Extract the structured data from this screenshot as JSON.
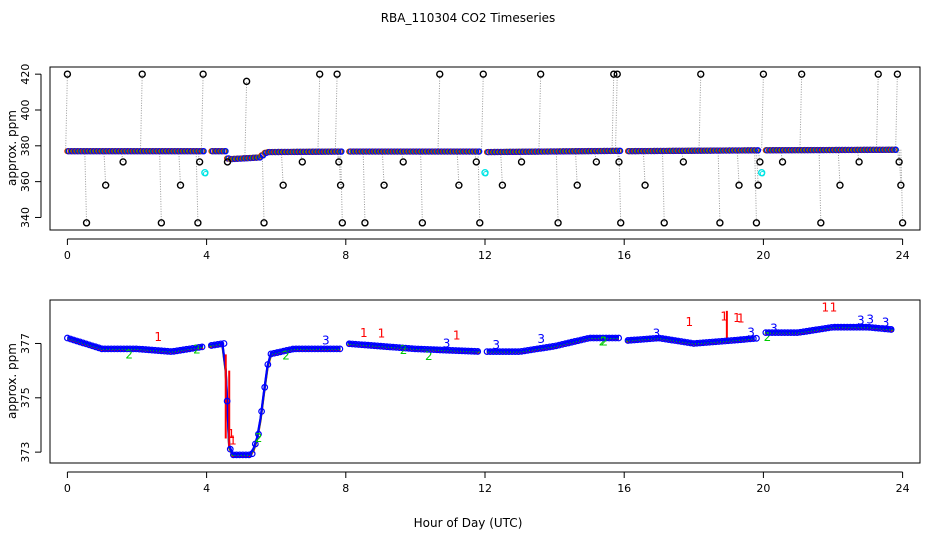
{
  "chart_data": {
    "type": "scatter",
    "title": "RBA_110304  CO2 Timeseries",
    "xlabel": "Hour of Day (UTC)",
    "colors": {
      "raw": "#000000",
      "sampleA": "#0000ff",
      "sampleB": "#00cc00",
      "sampleC": "#ff0000",
      "standard": "#00e5e5",
      "connector": "#999999"
    },
    "panels": [
      {
        "name": "raw",
        "ylabel": "approx. ppm",
        "xlim": [
          -0.5,
          24.5
        ],
        "ylim": [
          333,
          424
        ],
        "xticks": [
          0,
          4,
          8,
          12,
          16,
          20,
          24
        ],
        "xtick_labels": [
          "0",
          "4",
          "8",
          "12",
          "16",
          "20",
          "24"
        ],
        "yticks": [
          340,
          360,
          380,
          400,
          420
        ],
        "ytick_labels": [
          "340",
          "360",
          "380",
          "400",
          "420"
        ],
        "baseline": [
          [
            0.0,
            377.0
          ],
          [
            4.5,
            377.0
          ],
          [
            4.6,
            372.5
          ],
          [
            5.5,
            373.5
          ],
          [
            5.7,
            376.5
          ],
          [
            7.9,
            376.8
          ],
          [
            8.0,
            376.8
          ],
          [
            11.9,
            376.8
          ],
          [
            12.0,
            376.5
          ],
          [
            15.9,
            377.2
          ],
          [
            16.0,
            377.0
          ],
          [
            19.9,
            377.5
          ],
          [
            20.0,
            377.5
          ],
          [
            23.8,
            377.8
          ]
        ],
        "gaps": [
          [
            3.95,
            4.05
          ],
          [
            7.85,
            8.05
          ],
          [
            11.85,
            12.05
          ],
          [
            15.85,
            16.05
          ],
          [
            19.85,
            20.05
          ]
        ],
        "spikes": [
          {
            "x": 0.0,
            "y": 420
          },
          {
            "x": 0.55,
            "y": 337
          },
          {
            "x": 1.1,
            "y": 358
          },
          {
            "x": 1.6,
            "y": 371
          },
          {
            "x": 2.15,
            "y": 420
          },
          {
            "x": 2.7,
            "y": 337
          },
          {
            "x": 3.25,
            "y": 358
          },
          {
            "x": 3.75,
            "y": 337
          },
          {
            "x": 3.8,
            "y": 371
          },
          {
            "x": 3.9,
            "y": 420
          },
          {
            "x": 4.6,
            "y": 371
          },
          {
            "x": 5.15,
            "y": 416
          },
          {
            "x": 5.65,
            "y": 337
          },
          {
            "x": 6.2,
            "y": 358
          },
          {
            "x": 6.75,
            "y": 371
          },
          {
            "x": 7.25,
            "y": 420
          },
          {
            "x": 7.75,
            "y": 420
          },
          {
            "x": 7.8,
            "y": 371
          },
          {
            "x": 7.85,
            "y": 358
          },
          {
            "x": 7.9,
            "y": 337
          },
          {
            "x": 8.55,
            "y": 337
          },
          {
            "x": 9.1,
            "y": 358
          },
          {
            "x": 9.65,
            "y": 371
          },
          {
            "x": 10.2,
            "y": 337
          },
          {
            "x": 10.7,
            "y": 420
          },
          {
            "x": 11.25,
            "y": 358
          },
          {
            "x": 11.75,
            "y": 371
          },
          {
            "x": 11.85,
            "y": 337
          },
          {
            "x": 11.95,
            "y": 420
          },
          {
            "x": 12.5,
            "y": 358
          },
          {
            "x": 13.05,
            "y": 371
          },
          {
            "x": 13.6,
            "y": 420
          },
          {
            "x": 14.1,
            "y": 337
          },
          {
            "x": 14.65,
            "y": 358
          },
          {
            "x": 15.2,
            "y": 371
          },
          {
            "x": 15.7,
            "y": 420
          },
          {
            "x": 15.8,
            "y": 420
          },
          {
            "x": 15.85,
            "y": 371
          },
          {
            "x": 15.9,
            "y": 337
          },
          {
            "x": 16.6,
            "y": 358
          },
          {
            "x": 17.15,
            "y": 337
          },
          {
            "x": 17.7,
            "y": 371
          },
          {
            "x": 18.2,
            "y": 420
          },
          {
            "x": 18.75,
            "y": 337
          },
          {
            "x": 19.3,
            "y": 358
          },
          {
            "x": 19.8,
            "y": 337
          },
          {
            "x": 19.85,
            "y": 358
          },
          {
            "x": 19.9,
            "y": 371
          },
          {
            "x": 20.0,
            "y": 420
          },
          {
            "x": 20.55,
            "y": 371
          },
          {
            "x": 21.1,
            "y": 420
          },
          {
            "x": 21.65,
            "y": 337
          },
          {
            "x": 22.2,
            "y": 358
          },
          {
            "x": 22.75,
            "y": 371
          },
          {
            "x": 23.3,
            "y": 420
          },
          {
            "x": 23.85,
            "y": 420
          },
          {
            "x": 23.9,
            "y": 371
          },
          {
            "x": 23.95,
            "y": 358
          },
          {
            "x": 24.0,
            "y": 337
          }
        ],
        "standards": [
          {
            "x": 3.95,
            "y": 365
          },
          {
            "x": 12.0,
            "y": 365
          },
          {
            "x": 19.95,
            "y": 365
          }
        ]
      },
      {
        "name": "filtered",
        "ylabel": "approx. ppm",
        "xlim": [
          -0.5,
          24.5
        ],
        "ylim": [
          372.6,
          378.6
        ],
        "xticks": [
          0,
          4,
          8,
          12,
          16,
          20,
          24
        ],
        "xtick_labels": [
          "0",
          "4",
          "8",
          "12",
          "16",
          "20",
          "24"
        ],
        "yticks": [
          373,
          375,
          377
        ],
        "ytick_labels": [
          "373",
          "375",
          "377"
        ],
        "point_labels": [
          "1",
          "2",
          "3"
        ],
        "baseline": [
          [
            0.0,
            377.2
          ],
          [
            1.0,
            376.8
          ],
          [
            2.0,
            376.8
          ],
          [
            3.0,
            376.7
          ],
          [
            4.5,
            377.0
          ],
          [
            4.55,
            376.0
          ],
          [
            4.65,
            373.2
          ],
          [
            4.75,
            372.9
          ],
          [
            5.3,
            372.9
          ],
          [
            5.5,
            373.7
          ],
          [
            5.65,
            375.2
          ],
          [
            5.8,
            376.6
          ],
          [
            6.5,
            376.8
          ],
          [
            7.9,
            376.8
          ],
          [
            8.0,
            377.0
          ],
          [
            10.0,
            376.8
          ],
          [
            11.9,
            376.7
          ],
          [
            12.0,
            376.7
          ],
          [
            13.0,
            376.7
          ],
          [
            14.0,
            376.9
          ],
          [
            15.0,
            377.2
          ],
          [
            15.9,
            377.2
          ],
          [
            16.0,
            377.1
          ],
          [
            17.0,
            377.2
          ],
          [
            18.0,
            377.0
          ],
          [
            19.0,
            377.1
          ],
          [
            19.9,
            377.2
          ],
          [
            20.0,
            377.4
          ],
          [
            21.0,
            377.4
          ],
          [
            22.0,
            377.6
          ],
          [
            23.0,
            377.6
          ],
          [
            23.8,
            377.5
          ]
        ],
        "gaps": [
          [
            3.95,
            4.05
          ],
          [
            7.85,
            8.05
          ],
          [
            11.85,
            12.05
          ],
          [
            15.85,
            16.05
          ],
          [
            19.85,
            20.05
          ]
        ],
        "red_spikes": [
          {
            "x": 4.55,
            "y1": 376.6,
            "y2": 373.5
          },
          {
            "x": 4.65,
            "y1": 376.0,
            "y2": 373.2
          },
          {
            "x": 18.95,
            "y1": 377.2,
            "y2": 378.2
          }
        ]
      }
    ]
  }
}
